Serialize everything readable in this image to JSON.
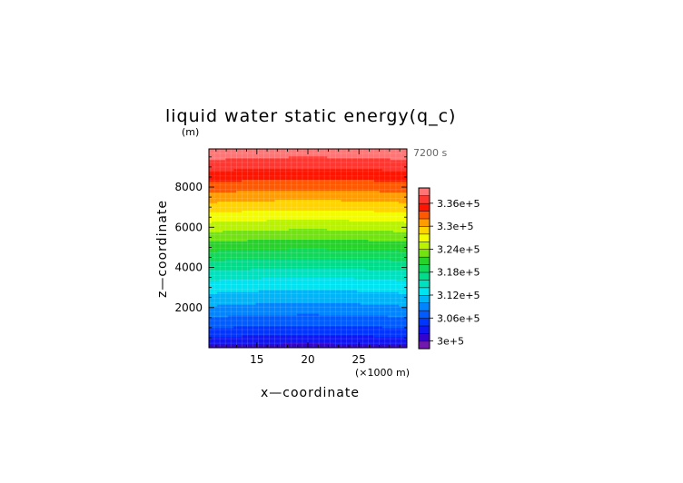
{
  "chart_data": {
    "type": "heatmap",
    "title": "liquid water static energy(q_c)",
    "y_unit_label": "(m)",
    "time_label": "7200 s",
    "xlabel": "x—coordinate",
    "ylabel": "z—coordinate",
    "x_unit_label": "(×1000 m)",
    "x_range": [
      10.3,
      29.7
    ],
    "y_range": [
      0,
      9900
    ],
    "x_ticks": [
      15,
      20,
      25
    ],
    "x_tick_labels": [
      "15",
      "20",
      "25"
    ],
    "y_ticks": [
      2000,
      4000,
      6000,
      8000
    ],
    "y_tick_labels": [
      "2000",
      "4000",
      "6000",
      "8000"
    ],
    "colorbar": {
      "min": 298000,
      "max": 340000,
      "step": 2000,
      "labeled_values": [
        300000,
        306000,
        312000,
        318000,
        324000,
        330000,
        336000
      ],
      "tick_labels": [
        "3e+5",
        "3.06e+5",
        "3.12e+5",
        "3.18e+5",
        "3.24e+5",
        "3.3e+5",
        "3.36e+5"
      ]
    },
    "profile": {
      "z": [
        0,
        500,
        1000,
        1500,
        2000,
        2500,
        3000,
        3500,
        4000,
        4500,
        5000,
        5500,
        6000,
        6500,
        7000,
        7500,
        8000,
        8500,
        9000,
        9500,
        9900
      ],
      "value": [
        301000,
        303600,
        305800,
        307600,
        309400,
        311000,
        312600,
        314200,
        316400,
        318400,
        320600,
        322600,
        324600,
        326800,
        328800,
        330800,
        332800,
        334600,
        336400,
        338200,
        339600
      ]
    },
    "horizontal_variation": {
      "amplitude": 500,
      "min_at_x": 20
    },
    "grid": true
  }
}
